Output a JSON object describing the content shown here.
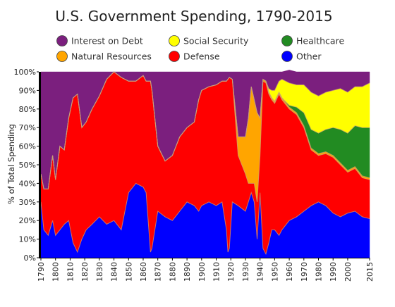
{
  "chart_data": {
    "type": "area",
    "stacked": true,
    "normalized": true,
    "title": "U.S. Government Spending, 1790-2015",
    "xlabel": "",
    "ylabel": "% of Total Spending",
    "xlim": [
      1790,
      2015
    ],
    "ylim": [
      0,
      100
    ],
    "grid": false,
    "legend_position": "top",
    "x_ticks": [
      1790,
      1800,
      1810,
      1820,
      1830,
      1840,
      1850,
      1860,
      1870,
      1880,
      1890,
      1900,
      1910,
      1920,
      1930,
      1940,
      1950,
      1960,
      1970,
      1980,
      1990,
      2000,
      2015
    ],
    "y_ticks": [
      "0%",
      "10%",
      "20%",
      "30%",
      "40%",
      "50%",
      "60%",
      "70%",
      "80%",
      "90%",
      "100%"
    ],
    "y_tick_values": [
      0,
      10,
      20,
      30,
      40,
      50,
      60,
      70,
      80,
      90,
      100
    ],
    "legend": [
      {
        "name": "Interest on Debt",
        "color": "#7b1f7e"
      },
      {
        "name": "Social Security",
        "color": "#ffff00"
      },
      {
        "name": "Healthcare",
        "color": "#228b22"
      },
      {
        "name": "Natural Resources",
        "color": "#ffa500"
      },
      {
        "name": "Defense",
        "color": "#ff0000"
      },
      {
        "name": "Other",
        "color": "#0000ff"
      }
    ],
    "stack_order": [
      "Other",
      "Defense",
      "Natural Resources",
      "Healthcare",
      "Social Security",
      "Interest on Debt"
    ],
    "x": [
      1790,
      1792,
      1795,
      1798,
      1800,
      1803,
      1806,
      1809,
      1812,
      1815,
      1818,
      1821,
      1825,
      1830,
      1835,
      1840,
      1845,
      1850,
      1855,
      1860,
      1862,
      1865,
      1866,
      1870,
      1875,
      1880,
      1885,
      1890,
      1895,
      1898,
      1900,
      1905,
      1910,
      1914,
      1917,
      1918,
      1919,
      1921,
      1925,
      1930,
      1932,
      1934,
      1936,
      1938,
      1940,
      1942,
      1944,
      1946,
      1948,
      1950,
      1953,
      1955,
      1960,
      1965,
      1970,
      1975,
      1980,
      1985,
      1990,
      1995,
      2000,
      2005,
      2010,
      2015
    ],
    "series": [
      {
        "name": "Other",
        "color": "#0000ff",
        "values": [
          30,
          15,
          12,
          20,
          12,
          15,
          18,
          20,
          8,
          3,
          10,
          15,
          18,
          22,
          18,
          20,
          15,
          35,
          40,
          38,
          35,
          3,
          5,
          25,
          22,
          20,
          25,
          30,
          28,
          25,
          28,
          30,
          28,
          30,
          15,
          3,
          5,
          30,
          28,
          25,
          30,
          35,
          30,
          10,
          35,
          5,
          2,
          8,
          15,
          15,
          12,
          15,
          20,
          22,
          25,
          28,
          30,
          28,
          24,
          22,
          24,
          25,
          22,
          21
        ]
      },
      {
        "name": "Defense",
        "color": "#ff0000",
        "values": [
          15,
          22,
          25,
          35,
          30,
          45,
          40,
          55,
          78,
          85,
          60,
          58,
          62,
          65,
          78,
          80,
          82,
          60,
          55,
          60,
          60,
          92,
          85,
          35,
          30,
          35,
          40,
          40,
          45,
          60,
          62,
          62,
          65,
          65,
          80,
          93,
          92,
          66,
          27,
          20,
          10,
          5,
          10,
          20,
          20,
          90,
          92,
          80,
          70,
          68,
          76,
          70,
          60,
          55,
          45,
          30,
          25,
          28,
          30,
          28,
          22,
          23,
          21,
          21
        ]
      },
      {
        "name": "Natural Resources",
        "color": "#ffa500",
        "values": [
          0,
          0,
          0,
          0,
          0,
          0,
          0,
          0,
          0,
          0,
          0,
          0,
          0,
          0,
          0,
          0,
          0,
          0,
          0,
          0,
          0,
          0,
          0,
          0,
          0,
          0,
          0,
          0,
          0,
          0,
          0,
          0,
          0,
          0,
          0,
          0,
          0,
          0,
          10,
          20,
          35,
          52,
          45,
          48,
          20,
          1,
          1,
          1,
          1,
          1,
          1,
          1,
          1,
          1,
          1,
          1,
          1,
          1,
          1,
          1,
          1,
          1,
          1,
          1
        ]
      },
      {
        "name": "Healthcare",
        "color": "#228b22",
        "values": [
          0,
          0,
          0,
          0,
          0,
          0,
          0,
          0,
          0,
          0,
          0,
          0,
          0,
          0,
          0,
          0,
          0,
          0,
          0,
          0,
          0,
          0,
          0,
          0,
          0,
          0,
          0,
          0,
          0,
          0,
          0,
          0,
          0,
          0,
          0,
          0,
          0,
          0,
          0,
          0,
          0,
          0,
          0,
          0,
          0,
          0,
          0,
          0,
          0,
          0,
          0,
          0,
          1,
          3,
          7,
          10,
          11,
          12,
          15,
          18,
          20,
          22,
          26,
          27
        ]
      },
      {
        "name": "Social Security",
        "color": "#ffff00",
        "values": [
          0,
          0,
          0,
          0,
          0,
          0,
          0,
          0,
          0,
          0,
          0,
          0,
          0,
          0,
          0,
          0,
          0,
          0,
          0,
          0,
          0,
          0,
          0,
          0,
          0,
          0,
          0,
          0,
          0,
          0,
          0,
          0,
          0,
          0,
          0,
          0,
          0,
          0,
          0,
          0,
          0,
          0,
          0,
          0,
          0,
          0,
          0,
          2,
          4,
          6,
          6,
          10,
          12,
          12,
          15,
          20,
          20,
          20,
          20,
          22,
          22,
          21,
          22,
          24
        ]
      },
      {
        "name": "Interest on Debt",
        "color": "#7b1f7e",
        "values": [
          55,
          63,
          63,
          45,
          58,
          40,
          42,
          25,
          14,
          12,
          30,
          27,
          20,
          13,
          4,
          0,
          3,
          5,
          5,
          2,
          5,
          5,
          10,
          40,
          48,
          45,
          35,
          30,
          27,
          15,
          10,
          8,
          7,
          5,
          5,
          4,
          3,
          4,
          35,
          35,
          25,
          8,
          15,
          22,
          25,
          4,
          5,
          9,
          10,
          10,
          5,
          4,
          7,
          7,
          7,
          11,
          13,
          11,
          10,
          9,
          11,
          8,
          8,
          6
        ]
      }
    ]
  }
}
